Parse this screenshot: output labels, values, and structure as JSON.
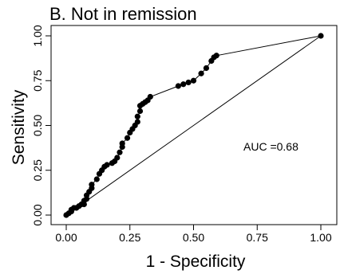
{
  "chart_data": {
    "type": "line",
    "title": "B. Not in remission",
    "xlabel": "1 - Specificity",
    "ylabel": "Sensitivity",
    "xlim": [
      0,
      1
    ],
    "ylim": [
      0,
      1
    ],
    "x_ticks": [
      "0.00",
      "0.25",
      "0.50",
      "0.75",
      "1.00"
    ],
    "y_ticks": [
      "0.00",
      "0.25",
      "0.50",
      "0.75",
      "1.00"
    ],
    "grid": false,
    "legend": "none",
    "annotation": "AUC =0.68",
    "series": [
      {
        "values_xy": [
          [
            0.0,
            0.0
          ],
          [
            0.01,
            0.01
          ],
          [
            0.02,
            0.02
          ],
          [
            0.02,
            0.03
          ],
          [
            0.03,
            0.04
          ],
          [
            0.04,
            0.04
          ],
          [
            0.05,
            0.05
          ],
          [
            0.06,
            0.06
          ],
          [
            0.07,
            0.06
          ],
          [
            0.07,
            0.08
          ],
          [
            0.08,
            0.09
          ],
          [
            0.08,
            0.11
          ],
          [
            0.09,
            0.13
          ],
          [
            0.1,
            0.15
          ],
          [
            0.1,
            0.17
          ],
          [
            0.12,
            0.2
          ],
          [
            0.13,
            0.23
          ],
          [
            0.14,
            0.25
          ],
          [
            0.15,
            0.27
          ],
          [
            0.16,
            0.28
          ],
          [
            0.18,
            0.29
          ],
          [
            0.19,
            0.3
          ],
          [
            0.2,
            0.32
          ],
          [
            0.21,
            0.35
          ],
          [
            0.22,
            0.38
          ],
          [
            0.22,
            0.4
          ],
          [
            0.24,
            0.43
          ],
          [
            0.25,
            0.46
          ],
          [
            0.26,
            0.48
          ],
          [
            0.27,
            0.5
          ],
          [
            0.28,
            0.52
          ],
          [
            0.28,
            0.55
          ],
          [
            0.29,
            0.58
          ],
          [
            0.29,
            0.61
          ],
          [
            0.3,
            0.62
          ],
          [
            0.31,
            0.63
          ],
          [
            0.32,
            0.64
          ],
          [
            0.33,
            0.66
          ],
          [
            0.44,
            0.72
          ],
          [
            0.46,
            0.73
          ],
          [
            0.48,
            0.74
          ],
          [
            0.5,
            0.75
          ],
          [
            0.53,
            0.79
          ],
          [
            0.55,
            0.82
          ],
          [
            0.57,
            0.86
          ],
          [
            0.58,
            0.88
          ],
          [
            0.59,
            0.89
          ],
          [
            1.0,
            1.0
          ]
        ]
      }
    ],
    "reference_line": [
      [
        0,
        0
      ],
      [
        1,
        1
      ]
    ]
  }
}
